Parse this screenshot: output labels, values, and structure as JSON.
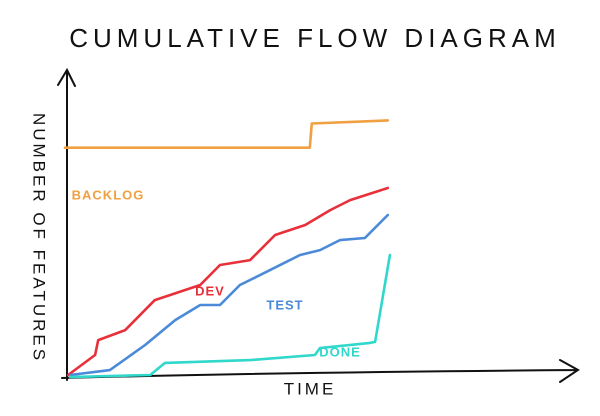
{
  "chart_data": {
    "type": "line",
    "title": "CUMULATIVE FLOW DIAGRAM",
    "x_label": "TIME",
    "y_label": "NUMBER OF FEATURES",
    "xlim": [
      0,
      100
    ],
    "ylim": [
      0,
      100
    ],
    "grid": false,
    "series": [
      {
        "name": "BACKLOG",
        "color": "#f0a040",
        "x": [
          0,
          48,
          48.4,
          63.3
        ],
        "values": [
          76,
          76,
          84,
          85
        ]
      },
      {
        "name": "DEV",
        "color": "#e8303a",
        "x": [
          0.6,
          5.9,
          6.5,
          11.8,
          17.6,
          23.5,
          26.5,
          30.4,
          36.3,
          41.2,
          47.1,
          52,
          55.9,
          63.3
        ],
        "values": [
          1,
          7.6,
          12.5,
          15.8,
          25.7,
          29,
          30.7,
          37.3,
          38.9,
          47.2,
          50.5,
          55.4,
          58.7,
          62.7
        ]
      },
      {
        "name": "TEST",
        "color": "#4a8ad8",
        "x": [
          1,
          8.8,
          15.7,
          21.6,
          26.5,
          30.4,
          34.3,
          40.2,
          46.1,
          50,
          53.9,
          58.8,
          63.3
        ],
        "values": [
          1,
          2.6,
          10.9,
          19.1,
          24.1,
          24.1,
          30.7,
          35.6,
          40.6,
          42.2,
          45.5,
          46.2,
          53.8
        ]
      },
      {
        "name": "DONE",
        "color": "#30d8cc",
        "x": [
          1,
          16.7,
          19.6,
          36.3,
          49,
          50,
          59.8,
          60.8,
          63.7
        ],
        "values": [
          0.3,
          1,
          5,
          5.9,
          7.6,
          9.9,
          11.6,
          11.9,
          40.6
        ]
      }
    ]
  }
}
